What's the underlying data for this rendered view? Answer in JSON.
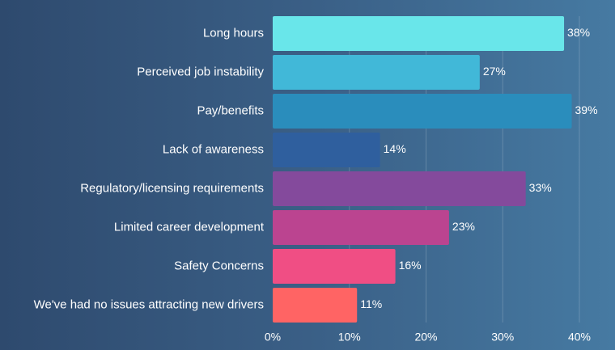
{
  "chart_data": {
    "type": "bar",
    "orientation": "horizontal",
    "categories": [
      "Long hours",
      "Perceived job instability",
      "Pay/benefits",
      "Lack of awareness",
      "Regulatory/licensing requirements",
      "Limited career development",
      "Safety Concerns",
      "We've had no issues attracting new drivers"
    ],
    "values": [
      38,
      27,
      39,
      14,
      33,
      23,
      16,
      11
    ],
    "value_labels": [
      "38%",
      "27%",
      "39%",
      "14%",
      "33%",
      "23%",
      "16%",
      "11%"
    ],
    "colors": [
      "#69e6ea",
      "#41b8d8",
      "#2a8dbc",
      "#2f5f9e",
      "#844a9c",
      "#bb4490",
      "#f04e84",
      "#ff6464"
    ],
    "xlim": [
      0,
      40
    ],
    "ticks": [
      0,
      10,
      20,
      30,
      40
    ],
    "tick_labels": [
      "0%",
      "10%",
      "20%",
      "30%",
      "40%"
    ],
    "grid": true,
    "legend": false
  }
}
